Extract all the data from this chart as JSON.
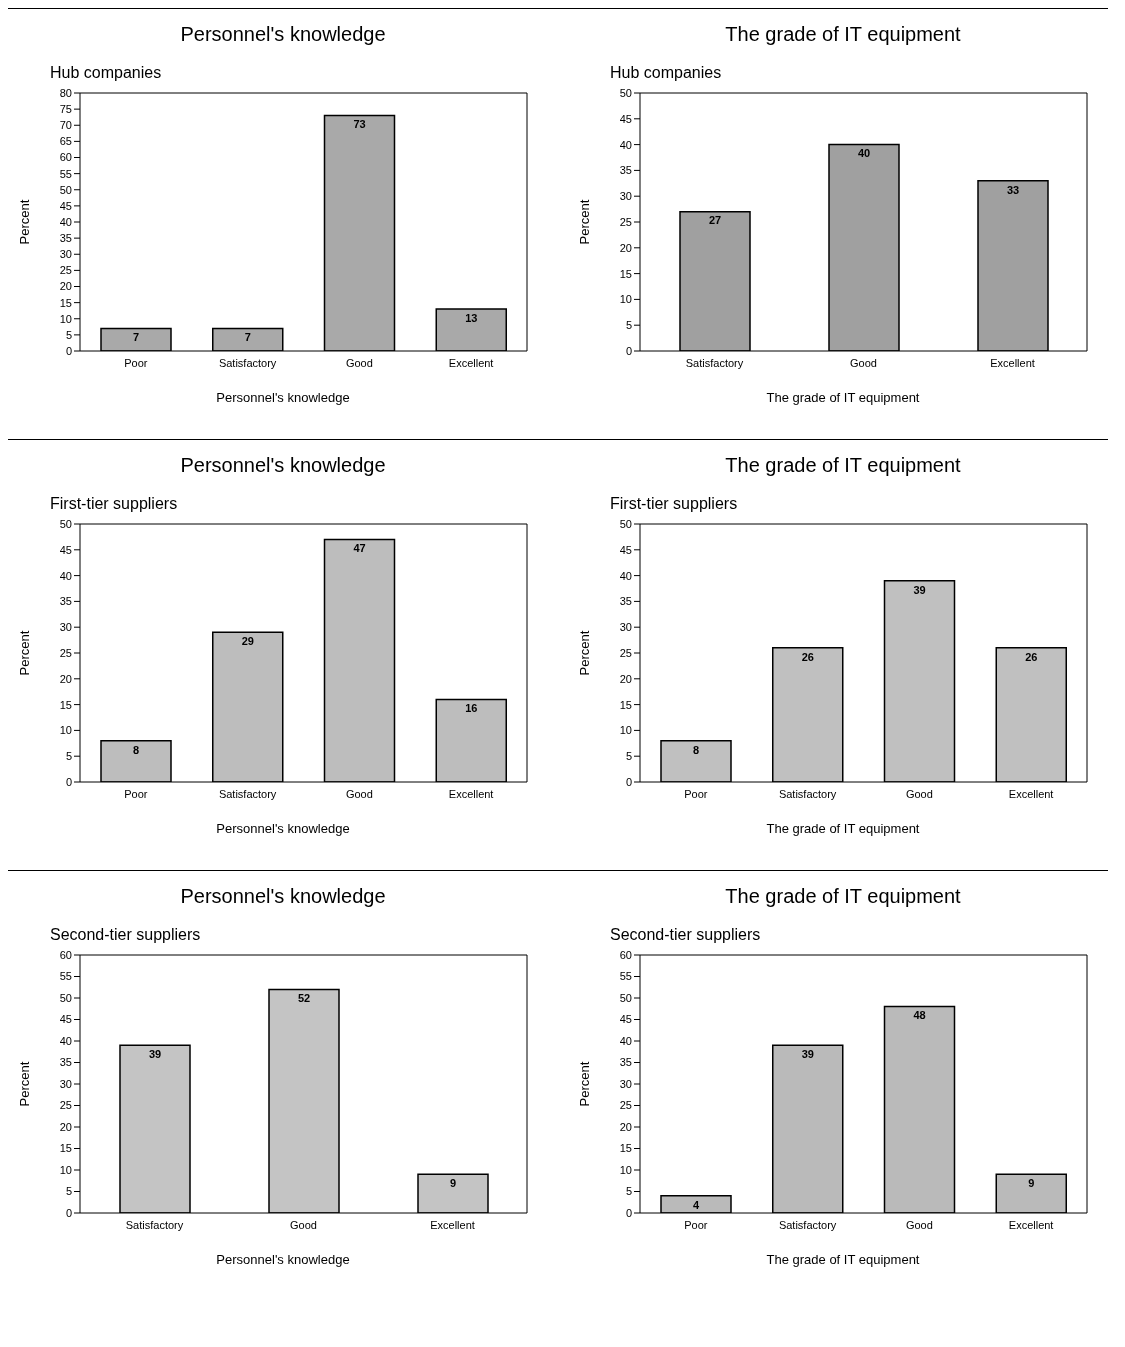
{
  "chart_data": [
    {
      "type": "bar",
      "title": "Personnel's knowledge",
      "subtitle": "Hub companies",
      "xlabel": "Personnel's knowledge",
      "ylabel": "Percent",
      "categories": [
        "Poor",
        "Satisfactory",
        "Good",
        "Excellent"
      ],
      "values": [
        7,
        7,
        73,
        13
      ],
      "color": "#a9a9a9",
      "ylim": [
        0,
        80
      ],
      "yticks": [
        0,
        5,
        10,
        15,
        20,
        25,
        30,
        35,
        40,
        45,
        50,
        55,
        60,
        65,
        70,
        75,
        80
      ],
      "data_labels": true
    },
    {
      "type": "bar",
      "title": "The grade of IT equipment",
      "subtitle": "Hub companies",
      "xlabel": "The grade of IT equipment",
      "ylabel": "Percent",
      "categories": [
        "Satisfactory",
        "Good",
        "Excellent"
      ],
      "values": [
        27,
        40,
        33
      ],
      "color": "#a0a0a0",
      "ylim": [
        0,
        50
      ],
      "yticks": [
        0,
        5,
        10,
        15,
        20,
        25,
        30,
        35,
        40,
        45,
        50
      ],
      "data_labels": true
    },
    {
      "type": "bar",
      "title": "Personnel's knowledge",
      "subtitle": "First-tier suppliers",
      "xlabel": "Personnel's knowledge",
      "ylabel": "Percent",
      "categories": [
        "Poor",
        "Satisfactory",
        "Good",
        "Excellent"
      ],
      "values": [
        8,
        29,
        47,
        16
      ],
      "color": "#bdbdbd",
      "ylim": [
        0,
        50
      ],
      "yticks": [
        0,
        5,
        10,
        15,
        20,
        25,
        30,
        35,
        40,
        45,
        50
      ],
      "data_labels": true
    },
    {
      "type": "bar",
      "title": "The grade of IT equipment",
      "subtitle": "First-tier suppliers",
      "xlabel": "The grade of IT equipment",
      "ylabel": "Percent",
      "categories": [
        "Poor",
        "Satisfactory",
        "Good",
        "Excellent"
      ],
      "values": [
        8,
        26,
        39,
        26
      ],
      "color": "#c0c0c0",
      "ylim": [
        0,
        50
      ],
      "yticks": [
        0,
        5,
        10,
        15,
        20,
        25,
        30,
        35,
        40,
        45,
        50
      ],
      "data_labels": true
    },
    {
      "type": "bar",
      "title": "Personnel's knowledge",
      "subtitle": "Second-tier suppliers",
      "xlabel": "Personnel's knowledge",
      "ylabel": "Percent",
      "categories": [
        "Satisfactory",
        "Good",
        "Excellent"
      ],
      "values": [
        39,
        52,
        9
      ],
      "color": "#c4c4c4",
      "ylim": [
        0,
        60
      ],
      "yticks": [
        0,
        5,
        10,
        15,
        20,
        25,
        30,
        35,
        40,
        45,
        50,
        55,
        60
      ],
      "data_labels": true
    },
    {
      "type": "bar",
      "title": "The grade of IT equipment",
      "subtitle": "Second-tier suppliers",
      "xlabel": "The grade of IT equipment",
      "ylabel": "Percent",
      "categories": [
        "Poor",
        "Satisfactory",
        "Good",
        "Excellent"
      ],
      "values": [
        4,
        39,
        48,
        9
      ],
      "color": "#bababa",
      "ylim": [
        0,
        60
      ],
      "yticks": [
        0,
        5,
        10,
        15,
        20,
        25,
        30,
        35,
        40,
        45,
        50,
        55,
        60
      ],
      "data_labels": true
    }
  ]
}
